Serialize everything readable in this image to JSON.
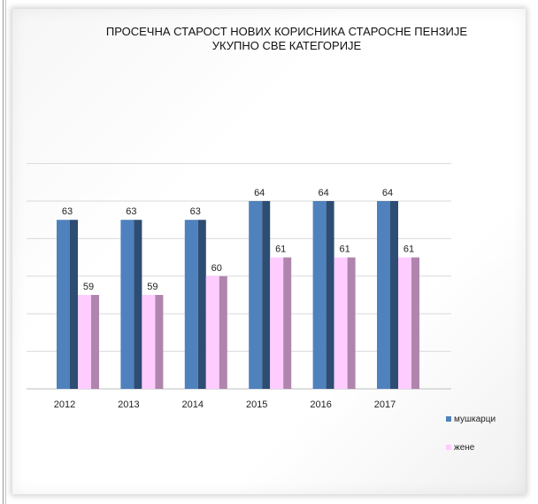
{
  "chart_data": {
    "type": "bar",
    "title_line1": "ПРОСЕЧНА СТАРОСТ НОВИХ КОРИСНИКА СТАРОСНЕ ПЕНЗИЈЕ",
    "title_line2": "УКУПНО СВЕ КАТЕГОРИЈЕ",
    "categories": [
      "2012",
      "2013",
      "2014",
      "2015",
      "2016",
      "2017"
    ],
    "series": [
      {
        "name": "мушкарци",
        "values": [
          63,
          63,
          63,
          64,
          64,
          64
        ],
        "color": "#4f81bd",
        "shade": "#2e4d73"
      },
      {
        "name": "жене",
        "values": [
          59,
          59,
          60,
          61,
          61,
          61
        ],
        "color": "#ffccff",
        "shade": "#b085ad"
      }
    ],
    "ylim": [
      54,
      66
    ],
    "grid": true,
    "legend_position": "bottom-right"
  }
}
